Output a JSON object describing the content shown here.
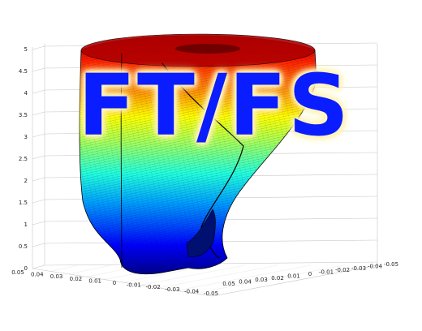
{
  "overlay": {
    "text": "FT/FS"
  },
  "chart_data": {
    "type": "surface3d",
    "title": "",
    "xlabel": "",
    "ylabel": "",
    "zlabel": "",
    "zlim": [
      0,
      5
    ],
    "xlim": [
      -0.05,
      0.05
    ],
    "ylim": [
      -0.05,
      0.05
    ],
    "grid": true,
    "colormap": "jet",
    "z_ticks": [
      "0",
      "0.5",
      "1",
      "1.5",
      "2",
      "2.5",
      "3",
      "3.5",
      "4",
      "4.5",
      "5"
    ],
    "x_ticks": [
      "0.05",
      "0.04",
      "0.03",
      "0.02",
      "0.01",
      "0",
      "-0.01",
      "-0.02",
      "-0.03",
      "-0.04",
      "-0.05"
    ],
    "y_ticks": [
      "0.05",
      "0.04",
      "0.03",
      "0.02",
      "0.01",
      "0",
      "-0.01",
      "-0.02",
      "-0.03",
      "-0.04",
      "-0.05"
    ],
    "surface_description_levels": [
      0,
      0.5,
      1,
      1.5,
      2,
      2.5,
      3,
      3.5,
      4,
      4.5,
      5
    ]
  }
}
